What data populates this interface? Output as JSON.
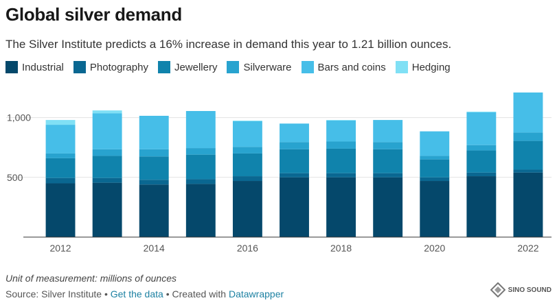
{
  "title": "Global silver demand",
  "subtitle": "The Silver Institute predicts a 16% increase in demand this year to 1.21 billion ounces.",
  "legend": [
    {
      "name": "Industrial",
      "color": "#05486b"
    },
    {
      "name": "Photography",
      "color": "#0a6791"
    },
    {
      "name": "Jewellery",
      "color": "#1083ac"
    },
    {
      "name": "Silverware",
      "color": "#28a3cf"
    },
    {
      "name": "Bars and coins",
      "color": "#46bee8"
    },
    {
      "name": "Hedging",
      "color": "#80e0f5"
    }
  ],
  "footnote": "Unit of measurement: millions of ounces",
  "source": {
    "prefix": "Source: Silver Institute",
    "sep1": " • ",
    "get_data": "Get the data",
    "sep2": " • ",
    "created_with": "Created with ",
    "tool": "Datawrapper"
  },
  "watermark": "SINO SOUND",
  "chart_data": {
    "type": "bar",
    "stacked": true,
    "categories": [
      "2012",
      "2013",
      "2014",
      "2015",
      "2016",
      "2017",
      "2018",
      "2019",
      "2020",
      "2021",
      "2022"
    ],
    "x_tick_labels": [
      "2012",
      "",
      "2014",
      "",
      "2016",
      "",
      "2018",
      "",
      "2020",
      "",
      "2022"
    ],
    "y_ticks": [
      {
        "value": 500,
        "label": "500"
      },
      {
        "value": 1000,
        "label": "1,000"
      }
    ],
    "ylim": [
      0,
      1250
    ],
    "grid": true,
    "legend_position": "top-left",
    "series": [
      {
        "name": "Industrial",
        "color": "#05486b",
        "values": [
          450,
          455,
          440,
          445,
          470,
          500,
          500,
          500,
          470,
          510,
          540
        ]
      },
      {
        "name": "Photography",
        "color": "#0a6791",
        "values": [
          45,
          40,
          40,
          40,
          40,
          35,
          35,
          35,
          30,
          30,
          25
        ]
      },
      {
        "name": "Jewellery",
        "color": "#1083ac",
        "values": [
          165,
          185,
          195,
          205,
          190,
          200,
          205,
          200,
          150,
          185,
          240
        ]
      },
      {
        "name": "Silverware",
        "color": "#28a3cf",
        "values": [
          40,
          55,
          60,
          55,
          55,
          60,
          60,
          60,
          30,
          45,
          70
        ]
      },
      {
        "name": "Bars and coins",
        "color": "#46bee8",
        "values": [
          240,
          300,
          280,
          310,
          215,
          155,
          175,
          185,
          205,
          275,
          335
        ]
      },
      {
        "name": "Hedging",
        "color": "#80e0f5",
        "values": [
          40,
          25,
          0,
          0,
          5,
          0,
          5,
          0,
          0,
          5,
          0
        ]
      }
    ]
  }
}
